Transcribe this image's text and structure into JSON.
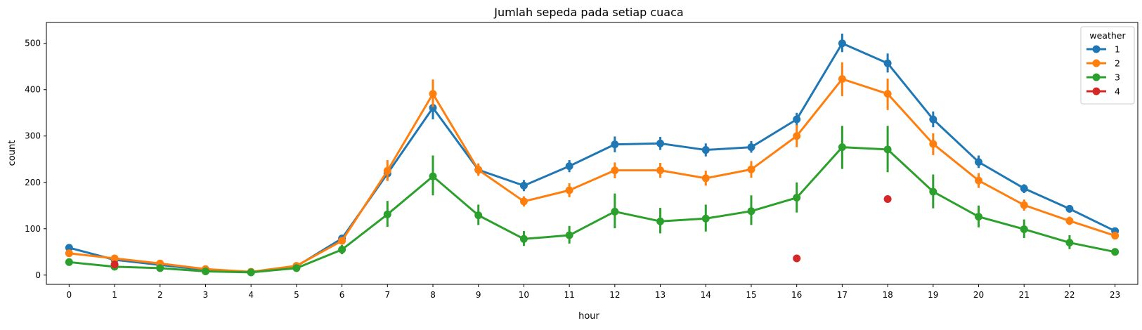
{
  "chart_data": {
    "type": "line",
    "title": "Jumlah sepeda pada setiap cuaca",
    "xlabel": "hour",
    "ylabel": "count",
    "categories": [
      "0",
      "1",
      "2",
      "3",
      "4",
      "5",
      "6",
      "7",
      "8",
      "9",
      "10",
      "11",
      "12",
      "13",
      "14",
      "15",
      "16",
      "17",
      "18",
      "19",
      "20",
      "21",
      "22",
      "23"
    ],
    "ylim": [
      -20,
      545
    ],
    "yticks": [
      0,
      100,
      200,
      300,
      400,
      500
    ],
    "grid": false,
    "legend": {
      "title": "weather",
      "placement": "top-right"
    },
    "series": [
      {
        "name": "1",
        "color": "#1f77b4",
        "values": [
          59,
          33,
          22,
          11,
          6,
          19,
          79,
          219,
          361,
          227,
          193,
          235,
          282,
          284,
          270,
          276,
          336,
          500,
          457,
          336,
          244,
          187,
          143,
          95
        ],
        "ci_low": [
          55,
          31,
          20,
          10,
          5,
          18,
          75,
          206,
          336,
          217,
          181,
          222,
          265,
          270,
          256,
          264,
          322,
          481,
          437,
          319,
          231,
          177,
          135,
          90
        ],
        "ci_high": [
          63,
          35,
          24,
          12,
          7,
          20,
          83,
          232,
          385,
          238,
          205,
          248,
          299,
          298,
          284,
          289,
          350,
          521,
          478,
          353,
          258,
          196,
          151,
          100
        ]
      },
      {
        "name": "2",
        "color": "#ff7f0e",
        "values": [
          47,
          36,
          25,
          13,
          7,
          20,
          74,
          225,
          391,
          227,
          159,
          183,
          226,
          226,
          209,
          228,
          300,
          423,
          391,
          283,
          204,
          151,
          117,
          85
        ],
        "ci_low": [
          43,
          33,
          22,
          12,
          6,
          18,
          68,
          203,
          362,
          214,
          148,
          168,
          209,
          210,
          193,
          210,
          276,
          386,
          356,
          259,
          188,
          139,
          108,
          79
        ],
        "ci_high": [
          51,
          39,
          28,
          15,
          8,
          22,
          80,
          248,
          422,
          241,
          170,
          198,
          243,
          242,
          225,
          246,
          324,
          459,
          424,
          306,
          220,
          163,
          126,
          91
        ]
      },
      {
        "name": "3",
        "color": "#2ca02c",
        "values": [
          28,
          18,
          15,
          8,
          6,
          15,
          55,
          131,
          213,
          129,
          78,
          86,
          137,
          116,
          122,
          138,
          167,
          276,
          271,
          180,
          126,
          99,
          70,
          50
        ],
        "ci_low": [
          24,
          15,
          12,
          6,
          4,
          12,
          45,
          104,
          172,
          108,
          63,
          68,
          101,
          90,
          94,
          108,
          135,
          229,
          222,
          144,
          103,
          80,
          56,
          42
        ],
        "ci_high": [
          32,
          21,
          18,
          10,
          8,
          18,
          65,
          160,
          258,
          152,
          95,
          106,
          176,
          145,
          152,
          172,
          200,
          322,
          322,
          217,
          150,
          120,
          86,
          58
        ]
      },
      {
        "name": "4",
        "color": "#d62728",
        "values": [
          null,
          23,
          null,
          null,
          null,
          null,
          null,
          null,
          null,
          null,
          null,
          null,
          null,
          null,
          null,
          null,
          36,
          null,
          164,
          null,
          null,
          null,
          null,
          null
        ]
      }
    ]
  }
}
